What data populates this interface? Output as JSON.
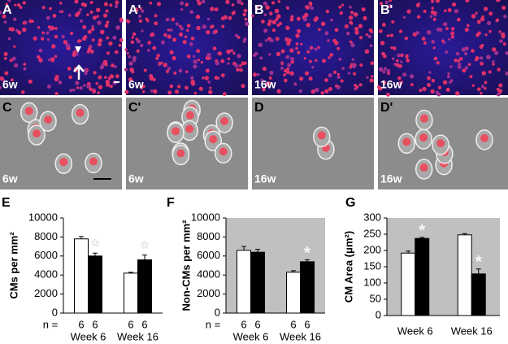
{
  "panels": [
    {
      "letter": "A",
      "label": "6w"
    },
    {
      "letter": "A'",
      "label": "6w"
    },
    {
      "letter": "B",
      "label": "16w"
    },
    {
      "letter": "B'",
      "label": "16w"
    },
    {
      "letter": "C",
      "label": "6w"
    },
    {
      "letter": "C'",
      "label": "6w"
    },
    {
      "letter": "D",
      "label": "16w"
    },
    {
      "letter": "D'",
      "label": "16w"
    }
  ],
  "chart_data": [
    {
      "type": "bar",
      "panel": "E",
      "y_label": "CMs per mm²",
      "categories": [
        "Week 6",
        "Week 16"
      ],
      "n_label": "n =",
      "ylim": [
        0,
        10000
      ],
      "yticks": [
        0,
        2000,
        4000,
        6000,
        8000,
        10000
      ],
      "background": "#ffffff",
      "series": [
        {
          "color": "#ffffff",
          "values": [
            7800,
            4200
          ],
          "errors": [
            250,
            100
          ],
          "n": [
            6,
            6
          ]
        },
        {
          "color": "#000000",
          "values": [
            6000,
            5600
          ],
          "errors": [
            300,
            500
          ],
          "n": [
            6,
            6
          ],
          "annotations": [
            "*",
            "*"
          ]
        }
      ]
    },
    {
      "type": "bar",
      "panel": "F",
      "y_label": "Non-CMs per mm²",
      "categories": [
        "Week 6",
        "Week 16"
      ],
      "n_label": "n =",
      "ylim": [
        0,
        10000
      ],
      "yticks": [
        0,
        2000,
        4000,
        6000,
        8000,
        10000
      ],
      "background": "#c0c0c0",
      "series": [
        {
          "color": "#ffffff",
          "values": [
            6600,
            4300
          ],
          "errors": [
            400,
            150
          ],
          "n": [
            6,
            6
          ]
        },
        {
          "color": "#000000",
          "values": [
            6400,
            5400
          ],
          "errors": [
            300,
            200
          ],
          "n": [
            6,
            6
          ],
          "annotations": [
            null,
            "*"
          ]
        }
      ]
    },
    {
      "type": "bar",
      "panel": "G",
      "y_label": "CM Area (μm²)",
      "categories": [
        "Week 6",
        "Week 16"
      ],
      "ylim": [
        0,
        300
      ],
      "yticks": [
        0,
        50,
        100,
        150,
        200,
        250,
        300
      ],
      "background": "#c0c0c0",
      "series": [
        {
          "color": "#ffffff",
          "values": [
            192,
            248
          ],
          "errors": [
            6,
            4
          ]
        },
        {
          "color": "#000000",
          "values": [
            237,
            128
          ],
          "errors": [
            3,
            15
          ],
          "annotations": [
            "*",
            "*"
          ]
        }
      ]
    }
  ]
}
